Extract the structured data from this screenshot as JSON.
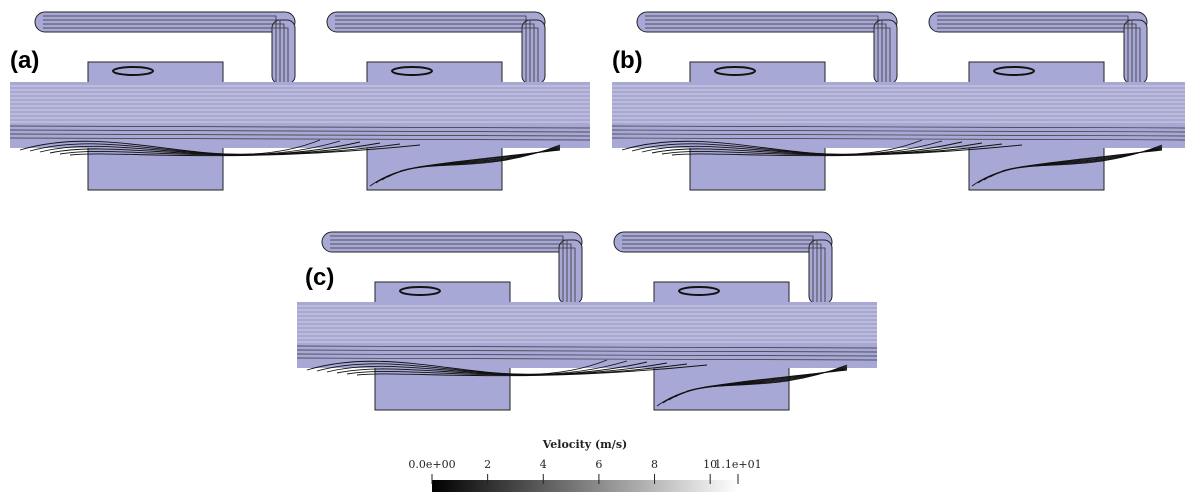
{
  "panels": [
    {
      "label": "(a)"
    },
    {
      "label": "(b)"
    },
    {
      "label": "(c)"
    }
  ],
  "colorbar": {
    "title": "Velocity (m/s)",
    "lim": [
      0,
      11
    ],
    "ticks": [
      {
        "value": 0,
        "label": "0.0e+00"
      },
      2,
      4,
      6,
      8,
      10,
      {
        "value": 11,
        "label": "1.1e+01"
      }
    ]
  }
}
